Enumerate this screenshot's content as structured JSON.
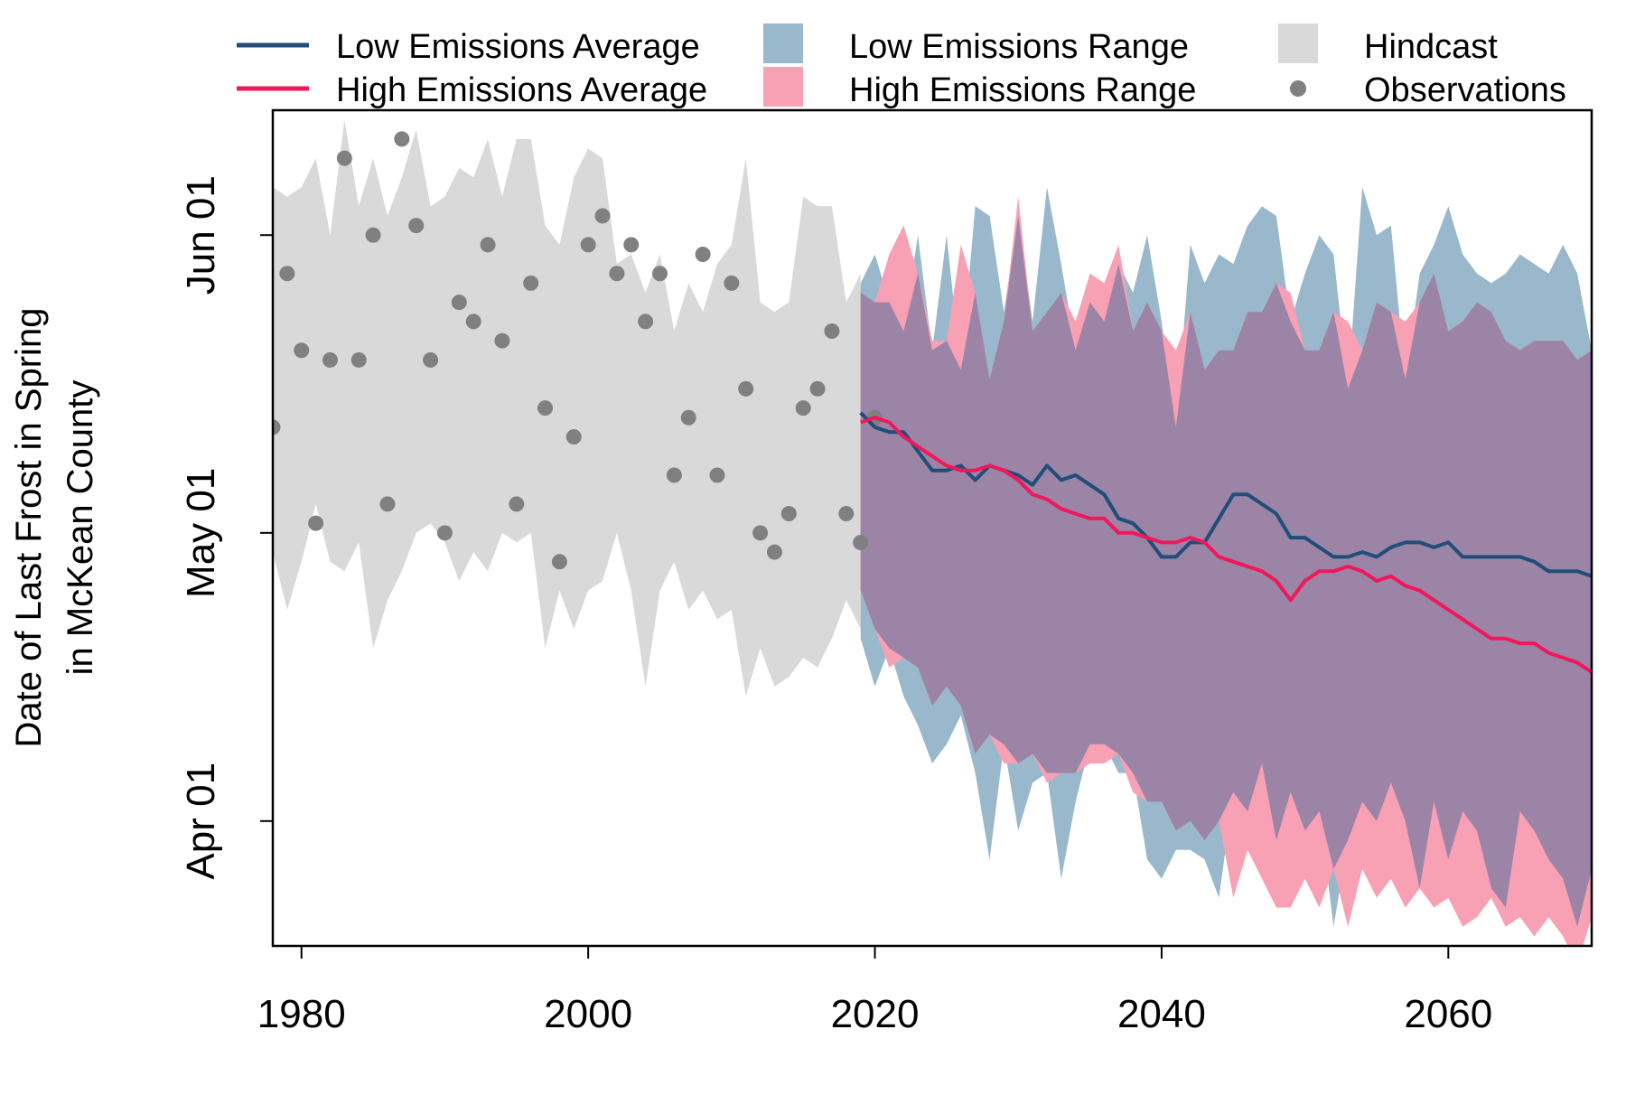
{
  "chart_data": {
    "type": "line",
    "ylabel_line1": "Date of Last Frost in Spring",
    "ylabel_line2": "in McKean County",
    "x_ticks": [
      1980,
      2000,
      2020,
      2040,
      2060
    ],
    "y_ticks": [
      {
        "label": "Apr 01",
        "doy": 91
      },
      {
        "label": "May 01",
        "doy": 121
      },
      {
        "label": "Jun 01",
        "doy": 152
      }
    ],
    "xlim": [
      1978,
      2070
    ],
    "ylim": [
      78,
      165
    ],
    "legend_position": "top",
    "legend": [
      {
        "label": "Low Emissions Average",
        "kind": "line",
        "color": "#1f4e79"
      },
      {
        "label": "High Emissions Average",
        "kind": "line",
        "color": "#f0185a"
      },
      {
        "label": "Low Emissions Range",
        "kind": "box",
        "color": "#9ab8cc"
      },
      {
        "label": "High Emissions Range",
        "kind": "box",
        "color": "#f8a0b4"
      },
      {
        "label": "Hindcast",
        "kind": "box",
        "color": "#d9d9d9"
      },
      {
        "label": "Observations",
        "kind": "dot",
        "color": "#808080"
      }
    ],
    "colors": {
      "hindcast": "#d9d9d9",
      "low_range": "#9ab8cc",
      "high_range": "#f8a0b4",
      "overlap": "#9c84a6",
      "low_avg": "#1f4e79",
      "high_avg": "#f0185a",
      "obs": "#808080"
    },
    "hindcast": {
      "x": [
        1978,
        1979,
        1980,
        1981,
        1982,
        1983,
        1984,
        1985,
        1986,
        1987,
        1988,
        1989,
        1990,
        1991,
        1992,
        1993,
        1994,
        1995,
        1996,
        1997,
        1998,
        1999,
        2000,
        2001,
        2002,
        2003,
        2004,
        2005,
        2006,
        2007,
        2008,
        2009,
        2010,
        2011,
        2012,
        2013,
        2014,
        2015,
        2016,
        2017,
        2018,
        2019
      ],
      "upper": [
        157,
        156,
        157,
        160,
        152,
        164,
        155,
        160,
        154,
        158,
        163,
        155,
        156,
        159,
        158,
        162,
        156,
        162,
        162,
        153,
        151,
        158,
        161,
        160,
        149,
        150,
        146,
        150,
        142,
        147,
        144,
        149,
        151,
        160,
        145,
        144,
        145,
        156,
        155,
        155,
        145,
        148
      ],
      "lower": [
        119,
        113,
        118,
        124,
        118,
        117,
        120,
        109,
        114,
        117,
        121,
        122,
        120,
        116,
        119,
        117,
        121,
        120,
        121,
        109,
        115,
        111,
        115,
        116,
        121,
        115,
        105,
        115,
        118,
        113,
        115,
        112,
        113,
        104,
        109,
        105,
        106,
        108,
        107,
        110,
        114,
        111
      ]
    },
    "observations": {
      "x": [
        1978,
        1979,
        1980,
        1981,
        1982,
        1983,
        1984,
        1985,
        1986,
        1987,
        1988,
        1989,
        1990,
        1991,
        1992,
        1993,
        1994,
        1995,
        1996,
        1997,
        1998,
        1999,
        2000,
        2001,
        2002,
        2003,
        2004,
        2005,
        2006,
        2007,
        2008,
        2009,
        2010,
        2011,
        2012,
        2013,
        2014,
        2015,
        2016,
        2017,
        2018,
        2019,
        2020
      ],
      "y": [
        132,
        148,
        140,
        122,
        139,
        160,
        139,
        152,
        124,
        162,
        153,
        139,
        121,
        145,
        143,
        151,
        141,
        124,
        147,
        134,
        118,
        131,
        151,
        154,
        148,
        151,
        143,
        148,
        127,
        133,
        150,
        127,
        147,
        136,
        121,
        119,
        123,
        134,
        136,
        142,
        123,
        120,
        133
      ]
    },
    "low_emissions": {
      "x": [
        2019,
        2020,
        2021,
        2022,
        2023,
        2024,
        2025,
        2026,
        2027,
        2028,
        2029,
        2030,
        2031,
        2032,
        2033,
        2034,
        2035,
        2036,
        2037,
        2038,
        2039,
        2040,
        2041,
        2042,
        2043,
        2044,
        2045,
        2046,
        2047,
        2048,
        2049,
        2050,
        2051,
        2052,
        2053,
        2054,
        2055,
        2056,
        2057,
        2058,
        2059,
        2060,
        2061,
        2062,
        2063,
        2064,
        2065,
        2066,
        2067,
        2068,
        2069,
        2070
      ],
      "average": [
        133.5,
        132,
        131.5,
        131.5,
        129.5,
        127.5,
        127.5,
        128,
        126.5,
        128,
        127.5,
        127,
        126,
        128,
        126.5,
        127,
        126,
        125,
        122.5,
        122,
        120.5,
        118.5,
        118.5,
        120,
        120,
        122.5,
        125,
        125,
        124,
        123,
        120.5,
        120.5,
        119.5,
        118.5,
        118.5,
        119,
        118.5,
        119.5,
        120,
        120,
        119.5,
        120,
        118.5,
        118.5,
        118.5,
        118.5,
        118.5,
        118,
        117,
        117,
        117,
        116.5
      ],
      "upper": [
        147,
        150,
        145,
        142,
        152,
        140,
        152,
        138,
        155,
        154,
        144,
        154,
        143,
        157,
        149,
        140,
        145,
        143,
        149,
        146,
        152,
        143,
        132,
        151,
        147,
        150,
        149,
        153,
        155,
        154,
        143,
        148,
        152,
        150,
        136,
        157,
        152,
        153,
        137,
        148,
        151,
        155,
        150,
        148,
        147,
        148,
        150,
        149,
        148,
        151,
        148,
        140
      ],
      "lower": [
        110,
        105,
        109,
        104,
        101,
        97,
        99,
        102,
        96,
        87,
        99,
        90,
        95,
        96,
        85,
        93,
        99,
        99,
        96,
        96,
        87,
        85,
        88,
        88,
        87,
        83,
        94,
        92,
        97,
        89,
        94,
        90,
        92,
        80,
        89,
        93,
        91,
        95,
        91,
        84,
        93,
        87,
        92,
        90,
        84,
        82,
        92,
        90,
        87,
        85,
        80,
        86
      ]
    },
    "high_emissions": {
      "x": [
        2019,
        2020,
        2021,
        2022,
        2023,
        2024,
        2025,
        2026,
        2027,
        2028,
        2029,
        2030,
        2031,
        2032,
        2033,
        2034,
        2035,
        2036,
        2037,
        2038,
        2039,
        2040,
        2041,
        2042,
        2043,
        2044,
        2045,
        2046,
        2047,
        2048,
        2049,
        2050,
        2051,
        2052,
        2053,
        2054,
        2055,
        2056,
        2057,
        2058,
        2059,
        2060,
        2061,
        2062,
        2063,
        2064,
        2065,
        2066,
        2067,
        2068,
        2069,
        2070
      ],
      "average": [
        132.5,
        133,
        132.5,
        131,
        130,
        129,
        128,
        127.5,
        127.5,
        128,
        127.5,
        126.5,
        125,
        124.5,
        123.5,
        123,
        122.5,
        122.5,
        121,
        121,
        120.5,
        120,
        120,
        120.5,
        120,
        118.5,
        118,
        117.5,
        117,
        116,
        114,
        116,
        117,
        117,
        117.5,
        117,
        116,
        116.5,
        115.5,
        115,
        114,
        113,
        112,
        111,
        110,
        110,
        109.5,
        109.5,
        108.5,
        108,
        107.5,
        106.5
      ],
      "upper": [
        146,
        145,
        150,
        153,
        148,
        141,
        141,
        151,
        146,
        137,
        143,
        156,
        142,
        144,
        146,
        143,
        148,
        147,
        151,
        142,
        145,
        142,
        140,
        144,
        138,
        140,
        140,
        144,
        144,
        147,
        146,
        140,
        140,
        144,
        143,
        140,
        145,
        144,
        143,
        145,
        148,
        142,
        143,
        145,
        144,
        141,
        140,
        141,
        141,
        141,
        139,
        140
      ],
      "lower": [
        115,
        111,
        107,
        108,
        107,
        103,
        105,
        103,
        98,
        100,
        97,
        97,
        98,
        95,
        96,
        96,
        97,
        97,
        98,
        94,
        93,
        93,
        90,
        91,
        89,
        91,
        83,
        88,
        85,
        82,
        82,
        85,
        82,
        86,
        80,
        86,
        83,
        85,
        82,
        84,
        82,
        83,
        80,
        81,
        83,
        80,
        81,
        79,
        81,
        79,
        76,
        81
      ]
    }
  }
}
